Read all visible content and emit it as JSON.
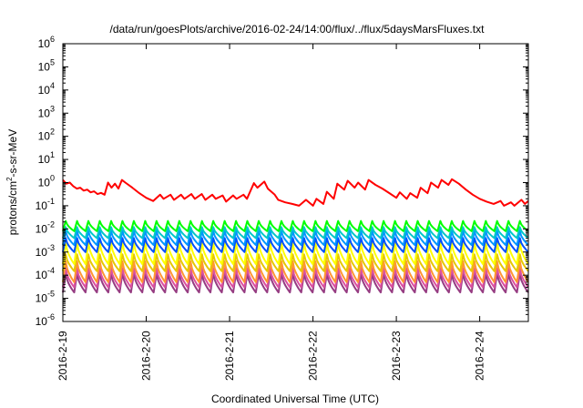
{
  "chart_data": {
    "type": "line",
    "title": "/data/run/goesPlots/archive/2016-02-24/14:00/flux/../flux/5daysMarsFluxes.txt",
    "xlabel": "Coordinated Universal Time (UTC)",
    "ylabel": "protons/cm²-s-sr-MeV",
    "y_scale": "log",
    "ylim": [
      1e-06,
      1000000.0
    ],
    "y_ticks": [
      {
        "value": 1e-06,
        "base": "10",
        "exp": "-6"
      },
      {
        "value": 1e-05,
        "base": "10",
        "exp": "-5"
      },
      {
        "value": 0.0001,
        "base": "10",
        "exp": "-4"
      },
      {
        "value": 0.001,
        "base": "10",
        "exp": "-3"
      },
      {
        "value": 0.01,
        "base": "10",
        "exp": "-2"
      },
      {
        "value": 0.1,
        "base": "10",
        "exp": "-1"
      },
      {
        "value": 1,
        "base": "10",
        "exp": "0"
      },
      {
        "value": 10,
        "base": "10",
        "exp": "1"
      },
      {
        "value": 100,
        "base": "10",
        "exp": "2"
      },
      {
        "value": 1000,
        "base": "10",
        "exp": "3"
      },
      {
        "value": 10000,
        "base": "10",
        "exp": "4"
      },
      {
        "value": 100000,
        "base": "10",
        "exp": "5"
      },
      {
        "value": 1000000,
        "base": "10",
        "exp": "6"
      }
    ],
    "xlim": [
      "2016-02-19",
      "2016-02-24 14:00"
    ],
    "x_ticks": [
      "2016-2-19",
      "2016-2-20",
      "2016-2-21",
      "2016-2-22",
      "2016-2-23",
      "2016-2-24"
    ],
    "grid": false,
    "legend": "none",
    "series": [
      {
        "color": "#ff0000",
        "x": [
          "2016-02-19 00:00",
          "2016-02-19 01:00",
          "2016-02-19 02:00",
          "2016-02-19 03:00",
          "2016-02-19 04:00",
          "2016-02-19 05:00",
          "2016-02-19 06:00",
          "2016-02-19 07:00",
          "2016-02-19 08:00",
          "2016-02-19 09:00",
          "2016-02-19 10:00",
          "2016-02-19 11:00",
          "2016-02-19 12:00",
          "2016-02-19 13:00",
          "2016-02-19 14:00",
          "2016-02-19 15:00",
          "2016-02-19 16:00",
          "2016-02-19 17:00",
          "2016-02-19 18:00",
          "2016-02-19 20:00",
          "2016-02-19 22:00",
          "2016-02-20 00:00",
          "2016-02-20 02:00",
          "2016-02-20 04:00",
          "2016-02-20 05:00",
          "2016-02-20 07:00",
          "2016-02-20 08:00",
          "2016-02-20 10:00",
          "2016-02-20 11:00",
          "2016-02-20 13:00",
          "2016-02-20 14:00",
          "2016-02-20 16:00",
          "2016-02-20 17:00",
          "2016-02-20 19:00",
          "2016-02-20 20:00",
          "2016-02-20 22:00",
          "2016-02-20 23:00",
          "2016-02-21 01:00",
          "2016-02-21 02:00",
          "2016-02-21 04:00",
          "2016-02-21 05:00",
          "2016-02-21 07:00",
          "2016-02-21 08:00",
          "2016-02-21 10:00",
          "2016-02-21 11:00",
          "2016-02-21 13:00",
          "2016-02-21 14:00",
          "2016-02-21 16:00",
          "2016-02-21 18:00",
          "2016-02-21 20:00",
          "2016-02-21 22:00",
          "2016-02-22 00:00",
          "2016-02-22 01:00",
          "2016-02-22 03:00",
          "2016-02-22 04:00",
          "2016-02-22 06:00",
          "2016-02-22 07:00",
          "2016-02-22 09:00",
          "2016-02-22 10:00",
          "2016-02-22 12:00",
          "2016-02-22 13:00",
          "2016-02-22 15:00",
          "2016-02-22 16:00",
          "2016-02-22 18:00",
          "2016-02-22 20:00",
          "2016-02-22 22:00",
          "2016-02-23 00:00",
          "2016-02-23 01:00",
          "2016-02-23 03:00",
          "2016-02-23 04:00",
          "2016-02-23 06:00",
          "2016-02-23 07:00",
          "2016-02-23 09:00",
          "2016-02-23 10:00",
          "2016-02-23 12:00",
          "2016-02-23 13:00",
          "2016-02-23 15:00",
          "2016-02-23 16:00",
          "2016-02-23 18:00",
          "2016-02-23 20:00",
          "2016-02-23 22:00",
          "2016-02-24 00:00",
          "2016-02-24 02:00",
          "2016-02-24 04:00",
          "2016-02-24 06:00",
          "2016-02-24 07:00",
          "2016-02-24 09:00",
          "2016-02-24 10:00",
          "2016-02-24 12:00",
          "2016-02-24 13:00",
          "2016-02-24 14:00"
        ],
        "y": [
          1.3,
          0.9,
          1.0,
          0.7,
          0.55,
          0.6,
          0.45,
          0.5,
          0.38,
          0.42,
          0.32,
          0.36,
          0.3,
          1.0,
          0.6,
          0.9,
          0.55,
          1.3,
          1.0,
          0.6,
          0.35,
          0.22,
          0.16,
          0.3,
          0.2,
          0.3,
          0.18,
          0.3,
          0.2,
          0.32,
          0.2,
          0.32,
          0.18,
          0.3,
          0.2,
          0.28,
          0.15,
          0.28,
          0.2,
          0.3,
          0.2,
          0.95,
          0.6,
          1.1,
          0.55,
          0.3,
          0.18,
          0.14,
          0.12,
          0.1,
          0.18,
          0.1,
          0.2,
          0.12,
          0.4,
          0.2,
          0.9,
          0.5,
          1.2,
          0.6,
          1.0,
          0.5,
          1.3,
          0.8,
          0.55,
          0.35,
          0.22,
          0.38,
          0.2,
          0.35,
          0.22,
          0.6,
          0.35,
          1.0,
          0.6,
          1.3,
          0.8,
          1.4,
          0.9,
          0.5,
          0.3,
          0.2,
          0.15,
          0.12,
          0.16,
          0.1,
          0.14,
          0.1,
          0.18,
          0.12,
          0.16
        ]
      },
      {
        "color": "#00ff00",
        "shape": "sawtooth",
        "cycles": 41,
        "peak": 0.022,
        "trough": 0.008
      },
      {
        "color": "#00c8c8",
        "shape": "sawtooth",
        "cycles": 41,
        "peak": 0.012,
        "trough": 0.004
      },
      {
        "color": "#0096ff",
        "shape": "sawtooth",
        "cycles": 41,
        "peak": 0.008,
        "trough": 0.002
      },
      {
        "color": "#0050ff",
        "shape": "sawtooth",
        "cycles": 41,
        "peak": 0.004,
        "trough": 0.001
      },
      {
        "color": "#ffff00",
        "shape": "sawtooth",
        "cycles": 41,
        "peak": 0.0025,
        "trough": 0.0003
      },
      {
        "color": "#e6c800",
        "shape": "sawtooth",
        "cycles": 41,
        "peak": 0.0008,
        "trough": 0.00015
      },
      {
        "color": "#ff9632",
        "shape": "sawtooth",
        "cycles": 41,
        "peak": 0.0004,
        "trough": 5e-05
      },
      {
        "color": "#dc50a0",
        "shape": "sawtooth",
        "cycles": 41,
        "peak": 0.0002,
        "trough": 3e-05
      },
      {
        "color": "#963c82",
        "shape": "sawtooth",
        "cycles": 41,
        "peak": 0.00012,
        "trough": 1.8e-05
      }
    ]
  }
}
